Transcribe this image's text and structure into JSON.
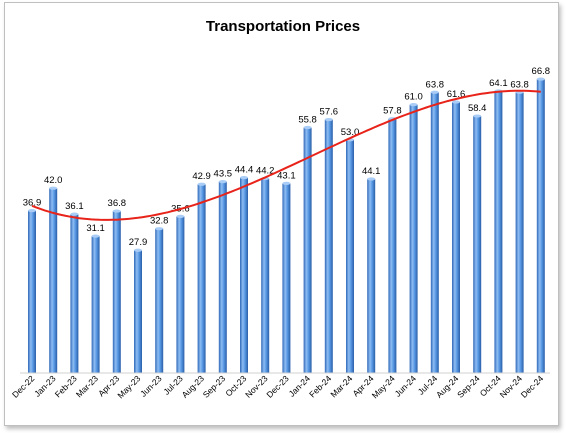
{
  "chart_data": {
    "type": "bar",
    "title": "Transportation Prices",
    "xlabel": "",
    "ylabel": "",
    "categories": [
      "Dec-22",
      "Jan-23",
      "Feb-23",
      "Mar-23",
      "Apr-23",
      "May-23",
      "Jun-23",
      "Jul-23",
      "Aug-23",
      "Sep-23",
      "Oct-23",
      "Nov-23",
      "Dec-23",
      "Jan-24",
      "Feb-24",
      "Mar-24",
      "Apr-24",
      "May-24",
      "Jun-24",
      "Jul-24",
      "Aug-24",
      "Sep-24",
      "Oct-24",
      "Nov-24",
      "Dec-24"
    ],
    "values": [
      36.9,
      42.0,
      36.1,
      31.1,
      36.8,
      27.9,
      32.8,
      35.6,
      42.9,
      43.5,
      44.4,
      44.2,
      43.1,
      55.8,
      57.6,
      53.0,
      44.1,
      57.8,
      61.0,
      63.8,
      61.6,
      58.4,
      64.1,
      63.8,
      66.8
    ],
    "value_labels": [
      "36.9",
      "42.0",
      "36.1",
      "31.1",
      "36.8",
      "27.9",
      "32.8",
      "35.6",
      "42.9",
      "43.5",
      "44.4",
      "44.2",
      "43.1",
      "55.8",
      "57.6",
      "53.0",
      "44.1",
      "57.8",
      "61.0",
      "63.8",
      "61.6",
      "58.4",
      "64.1",
      "63.8",
      "66.8"
    ],
    "trendline": {
      "type": "polynomial",
      "color": "#e8231a"
    },
    "ylim": [
      0,
      70
    ],
    "grid": false,
    "legend": "none",
    "bar_color": "#4f8fdc"
  }
}
